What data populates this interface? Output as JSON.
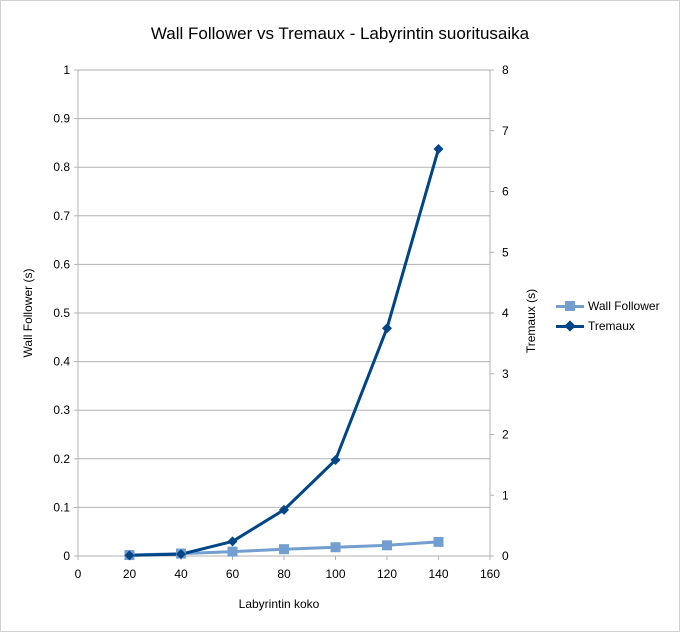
{
  "chart_data": {
    "type": "line",
    "title": "Wall Follower vs Tremaux - Labyrintin suoritusaika",
    "xlabel": "Labyrintin koko",
    "ylabel_left": "Wall Follower (s)",
    "ylabel_right": "Tremaux (s)",
    "xlim": [
      0,
      160
    ],
    "x_ticks": [
      "0",
      "20",
      "40",
      "60",
      "80",
      "100",
      "120",
      "140",
      "160"
    ],
    "ylim_left": [
      0,
      1
    ],
    "y_left_ticks": [
      "0",
      "0.1",
      "0.2",
      "0.3",
      "0.4",
      "0.5",
      "0.6",
      "0.7",
      "0.8",
      "0.9",
      "1"
    ],
    "ylim_right": [
      0,
      8
    ],
    "y_right_ticks": [
      "0",
      "1",
      "2",
      "3",
      "4",
      "5",
      "6",
      "7",
      "8"
    ],
    "grid": true,
    "legend_position": "right",
    "x": [
      20,
      40,
      60,
      80,
      100,
      120,
      140
    ],
    "series": [
      {
        "name": "Wall Follower",
        "axis": "left",
        "marker": "square",
        "color": "#729fcf",
        "values": [
          0.002,
          0.005,
          0.009,
          0.014,
          0.018,
          0.022,
          0.029
        ]
      },
      {
        "name": "Tremaux",
        "axis": "right",
        "marker": "diamond",
        "color": "#004586",
        "values": [
          0.01,
          0.03,
          0.24,
          0.76,
          1.58,
          3.75,
          6.7
        ]
      }
    ]
  }
}
